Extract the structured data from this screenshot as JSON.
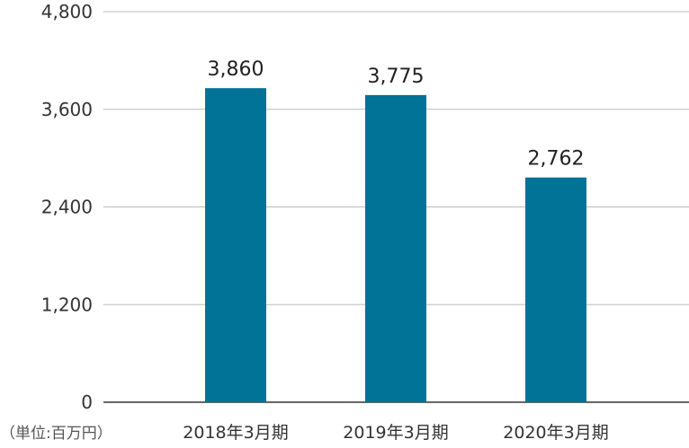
{
  "chart_data": {
    "type": "bar",
    "categories": [
      "2018年3月期",
      "2019年3月期",
      "2020年3月期"
    ],
    "values": [
      3860,
      3775,
      2762
    ],
    "value_labels": [
      "3,860",
      "3,775",
      "2,762"
    ],
    "yticks": [
      0,
      1200,
      2400,
      3600,
      4800
    ],
    "ytick_labels": [
      "0",
      "1,200",
      "2,400",
      "3,600",
      "4,800"
    ],
    "ylim": [
      0,
      4800
    ],
    "unit_label": "（単位:百万円）",
    "grid": true,
    "colors": {
      "bar": "#007396",
      "grid": "#bbbbbb",
      "axis": "#333333"
    }
  }
}
